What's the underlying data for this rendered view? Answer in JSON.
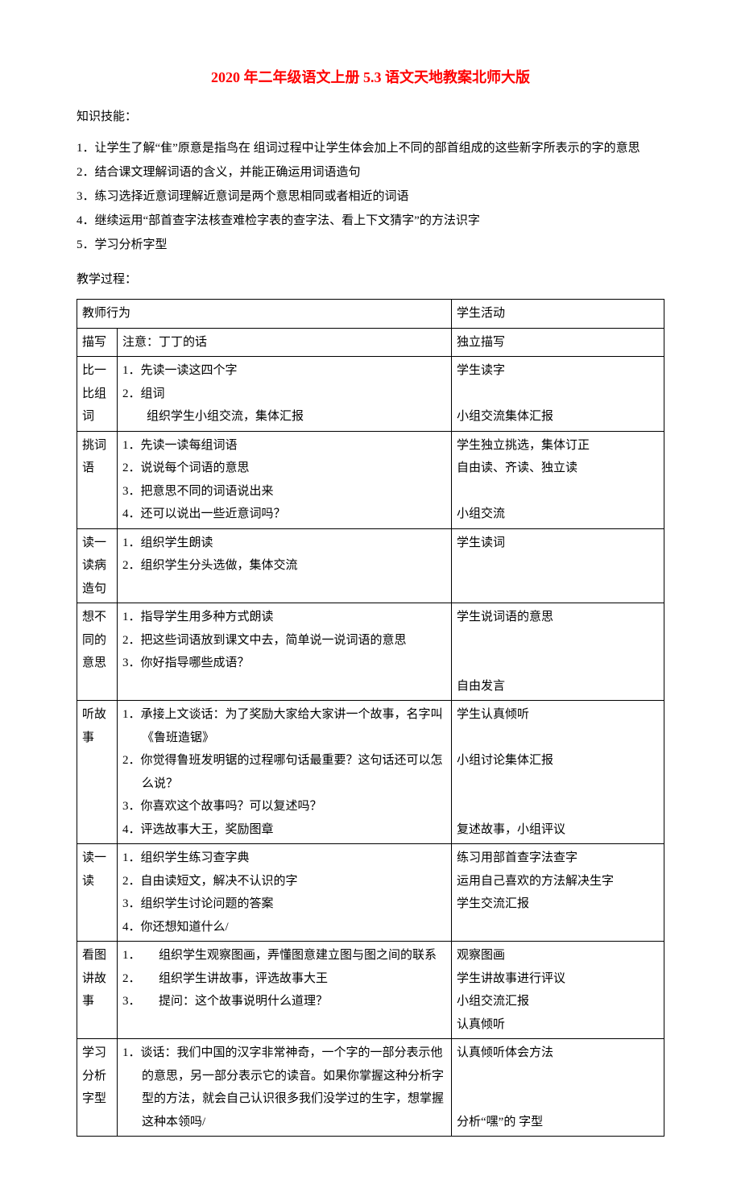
{
  "title": "2020 年二年级语文上册 5.3 语文天地教案北师大版",
  "section1_label": "知识技能：",
  "knowledge": [
    "1．让学生了解“隹”原意是指鸟在 组词过程中让学生体会加上不同的部首组成的这些新字所表示的字的意思",
    "2．结合课文理解词语的含义，并能正确运用词语造句",
    "3．练习选择近意词理解近意词是两个意思相同或者相近的词语",
    "4．继续运用“部首查字法核查难检字表的查字法、看上下文猜字”的方法识字",
    "5．学习分析字型"
  ],
  "section2_label": "教学过程：",
  "table_header": {
    "col1": "教师行为",
    "col3": "学生活动"
  },
  "rows": [
    {
      "c1": "描写",
      "c2": "注意：丁丁的话",
      "c3": "独立描写"
    },
    {
      "c1": "比一比组词",
      "c2_items": [
        "1．先读一读这四个字",
        "2．组词",
        "　　组织学生小组交流，集体汇报"
      ],
      "c3": "学生读字\n\n小组交流集体汇报"
    },
    {
      "c1": "挑词语",
      "c2_items": [
        "1．先读一读每组词语",
        "2．说说每个词语的意思",
        "3．把意思不同的词语说出来",
        "4．还可以说出一些近意词吗？"
      ],
      "c3": "学生独立挑选，集体订正\n自由读、齐读、独立读\n\n小组交流"
    },
    {
      "c1": "读一读病造句",
      "c2_items": [
        "1．组织学生朗读",
        "2．组织学生分头选做，集体交流"
      ],
      "c3": "学生读词"
    },
    {
      "c1": "想不同的意思",
      "c2_items": [
        "1．指导学生用多种方式朗读",
        "2．把这些词语放到课文中去，简单说一说词语的意思",
        "3．你好指导哪些成语？"
      ],
      "c3": "学生说词语的意思\n\n\n自由发言"
    },
    {
      "c1": "听故事",
      "c2_items": [
        "1．承接上文谈话：为了奖励大家给大家讲一个故事，名字叫《鲁班造锯》",
        "2．你觉得鲁班发明锯的过程哪句话最重要？这句话还可以怎么说？",
        "3．你喜欢这个故事吗？可以复述吗？",
        "4．评选故事大王，奖励图章"
      ],
      "c3": "学生认真倾听\n\n小组讨论集体汇报\n\n\n复述故事，小组评议"
    },
    {
      "c1": "读一读",
      "c2_items": [
        "1．组织学生练习查字典",
        "2．自由读短文，解决不认识的字",
        "3．组织学生讨论问题的答案",
        "4．你还想知道什么/"
      ],
      "c3": "练习用部首查字法查字\n运用自己喜欢的方法解决生字\n学生交流汇报"
    },
    {
      "c1": "看图讲故事",
      "c2_items": [
        "1．　　组织学生观察图画，弄懂图意建立图与图之间的联系",
        "2．　　组织学生讲故事，评选故事大王",
        "3．　　提问：这个故事说明什么道理？"
      ],
      "c3": "观察图画\n学生讲故事进行评议\n小组交流汇报\n认真倾听"
    },
    {
      "c1": "学习分析字型",
      "c2_items": [
        "1．谈话：我们中国的汉字非常神奇，一个字的一部分表示他的意思，另一部分表示它的读音。如果你掌握这种分析字型的方法，就会自己认识很多我们没学过的生字，想掌握这种本领吗/"
      ],
      "c3": "认真倾听体会方法\n\n\n分析“嘿”的 字型"
    }
  ]
}
